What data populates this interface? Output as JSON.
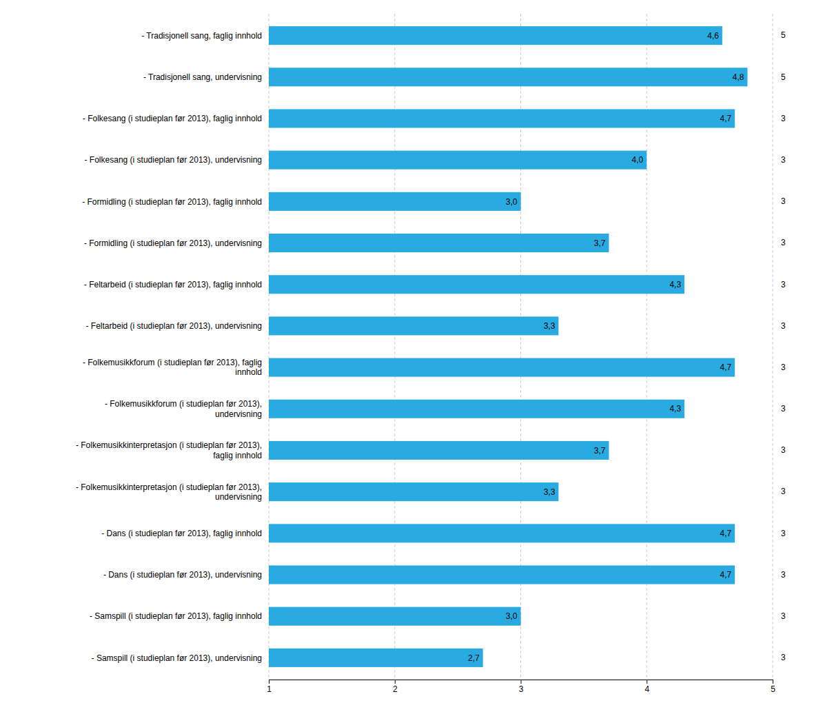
{
  "chart_data": {
    "type": "bar",
    "orientation": "horizontal",
    "categories": [
      "- Tradisjonell sang, faglig innhold",
      "- Tradisjonell sang, undervisning",
      "- Folkesang (i studieplan før 2013), faglig innhold",
      "- Folkesang (i studieplan før 2013), undervisning",
      "- Formidling (i studieplan før 2013), faglig innhold",
      "- Formidling (i studieplan før 2013), undervisning",
      "- Feltarbeid (i studieplan før 2013), faglig innhold",
      "- Feltarbeid (i studieplan før 2013), undervisning",
      "- Folkemusikkforum (i studieplan før 2013), faglig\ninnhold",
      "- Folkemusikkforum (i studieplan før 2013),\nundervisning",
      "- Folkemusikkinterpretasjon (i studieplan før 2013),\nfaglig innhold",
      "- Folkemusikkinterpretasjon (i studieplan før 2013),\nundervisning",
      "- Dans (i studieplan før 2013), faglig innhold",
      "- Dans (i studieplan før 2013), undervisning",
      "- Samspill (i studieplan før 2013), faglig innhold",
      "- Samspill (i studieplan før 2013), undervisning"
    ],
    "values": [
      4.6,
      4.8,
      4.7,
      4.0,
      3.0,
      3.7,
      4.3,
      3.3,
      4.7,
      4.3,
      3.7,
      3.3,
      4.7,
      4.7,
      3.0,
      2.7
    ],
    "value_labels": [
      "4,6",
      "4,8",
      "4,7",
      "4,0",
      "3,0",
      "3,7",
      "4,3",
      "3,3",
      "4,7",
      "4,3",
      "3,7",
      "3,3",
      "4,7",
      "4,7",
      "3,0",
      "2,7"
    ],
    "data_labels": true,
    "n_values": [
      5,
      5,
      3,
      3,
      3,
      3,
      3,
      3,
      3,
      3,
      3,
      3,
      3,
      3,
      3,
      3
    ],
    "color": "#29ABE2",
    "xlim": [
      1,
      5
    ],
    "xticks": [
      1,
      2,
      3,
      4,
      5
    ],
    "grid": true
  }
}
